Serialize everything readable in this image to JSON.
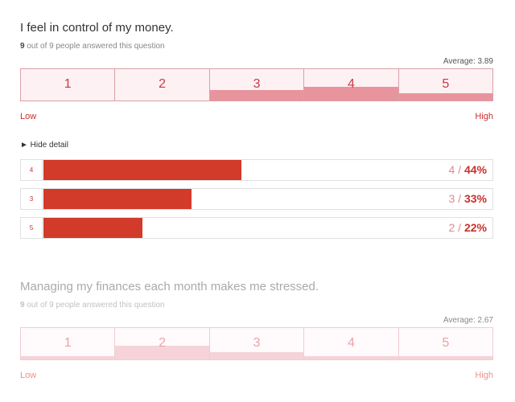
{
  "questions": [
    {
      "title": "I feel in control of my money.",
      "answered_count": "9",
      "answered_text": " out of 9 people answered this question",
      "average": "Average: 3.89",
      "scale": [
        {
          "label": "1",
          "fraction": 0
        },
        {
          "label": "2",
          "fraction": 0
        },
        {
          "label": "3",
          "fraction": 0.33
        },
        {
          "label": "4",
          "fraction": 0.44
        },
        {
          "label": "5",
          "fraction": 0.22
        }
      ],
      "low_label": "Low",
      "high_label": "High",
      "detail_toggle": "► Hide detail",
      "details": [
        {
          "key": "4",
          "count": "4",
          "sep": " / ",
          "percent": "44%",
          "fraction": 0.44
        },
        {
          "key": "3",
          "count": "3",
          "sep": " / ",
          "percent": "33%",
          "fraction": 0.33
        },
        {
          "key": "5",
          "count": "2",
          "sep": " / ",
          "percent": "22%",
          "fraction": 0.22
        }
      ]
    },
    {
      "title": "Managing my finances each month makes me stressed.",
      "answered_count": "9",
      "answered_text": " out of 9 people answered this question",
      "average": "Average: 2.67",
      "scale": [
        {
          "label": "1",
          "fraction": 0.11
        },
        {
          "label": "2",
          "fraction": 0.44
        },
        {
          "label": "3",
          "fraction": 0.22
        },
        {
          "label": "4",
          "fraction": 0.11
        },
        {
          "label": "5",
          "fraction": 0.11
        }
      ],
      "low_label": "Low",
      "high_label": "High"
    }
  ],
  "colors": {
    "accent": "#c8302c",
    "bar_fill": "#d23a2a",
    "scale_fill": "#e8949c",
    "scale_bg": "#fdf1f3"
  }
}
